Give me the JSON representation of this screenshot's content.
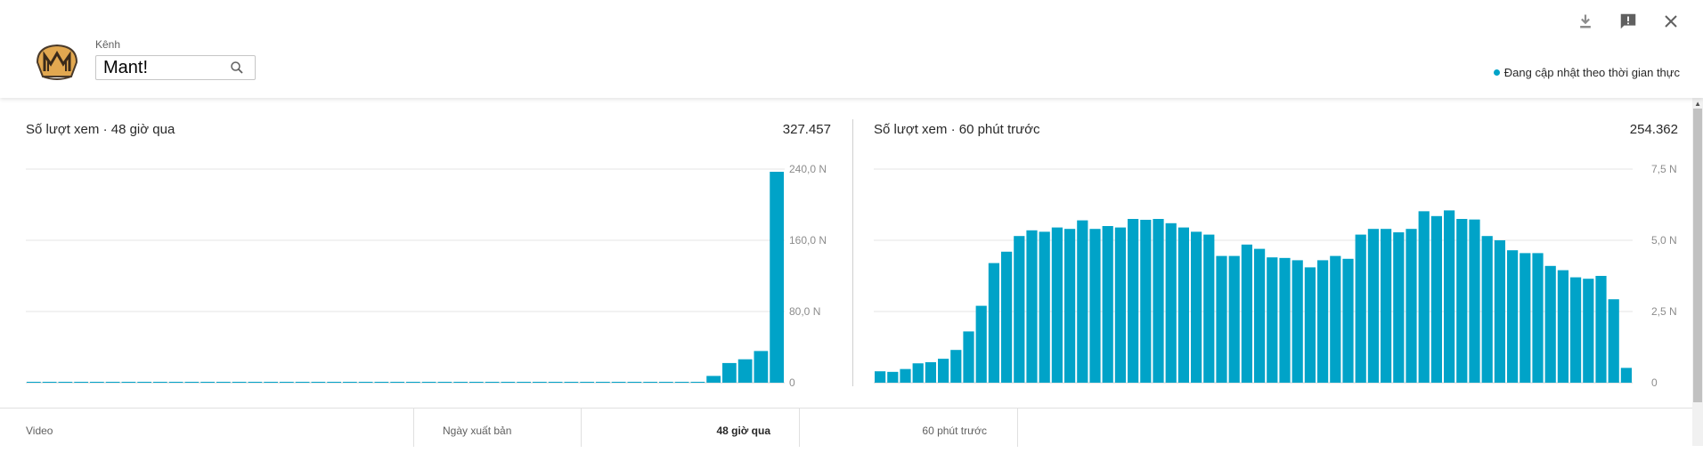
{
  "header": {
    "channel_label": "Kênh",
    "channel_name": "Mant!",
    "realtime_text": "Đang cập nhật theo thời gian thực",
    "icons": [
      "download-icon",
      "feedback-icon",
      "close-icon"
    ]
  },
  "colors": {
    "accent": "#00a3c8",
    "grid": "#e5e5e5"
  },
  "chart_data": [
    {
      "type": "bar",
      "title": "Số lượt xem · 48 giờ qua",
      "total": "327.457",
      "y_tick_labels": [
        "240,0 N",
        "160,0 N",
        "80,0 N",
        "0"
      ],
      "y_ticks": [
        240000,
        160000,
        80000,
        0
      ],
      "ylim": [
        0,
        240000
      ],
      "values": [
        0,
        0,
        0,
        0,
        0,
        0,
        0,
        0,
        0,
        0,
        0,
        0,
        0,
        0,
        0,
        0,
        0,
        0,
        0,
        0,
        0,
        0,
        0,
        0,
        0,
        0,
        0,
        0,
        0,
        0,
        0,
        0,
        0,
        0,
        0,
        0,
        0,
        0,
        0,
        0,
        0,
        0,
        0,
        7600,
        22100,
        26300,
        35600,
        237000
      ]
    },
    {
      "type": "bar",
      "title": "Số lượt xem · 60 phút trước",
      "total": "254.362",
      "y_tick_labels": [
        "7,5 N",
        "5,0 N",
        "2,5 N",
        "0"
      ],
      "y_ticks": [
        7500,
        5000,
        2500,
        0
      ],
      "ylim": [
        0,
        7500
      ],
      "values": [
        400,
        380,
        480,
        680,
        720,
        840,
        1150,
        1800,
        2700,
        4200,
        4600,
        5150,
        5350,
        5300,
        5450,
        5400,
        5700,
        5400,
        5500,
        5450,
        5750,
        5720,
        5750,
        5600,
        5450,
        5300,
        5200,
        4450,
        4450,
        4850,
        4700,
        4400,
        4380,
        4300,
        4050,
        4300,
        4450,
        4350,
        5200,
        5400,
        5400,
        5280,
        5400,
        6020,
        5850,
        6050,
        5750,
        5730,
        5150,
        5000,
        4650,
        4550,
        4550,
        4100,
        3950,
        3700,
        3650,
        3750,
        2930,
        520
      ]
    }
  ],
  "table": {
    "columns": [
      "Video",
      "Ngày xuất bản",
      "48 giờ qua",
      "60 phút trước"
    ]
  }
}
